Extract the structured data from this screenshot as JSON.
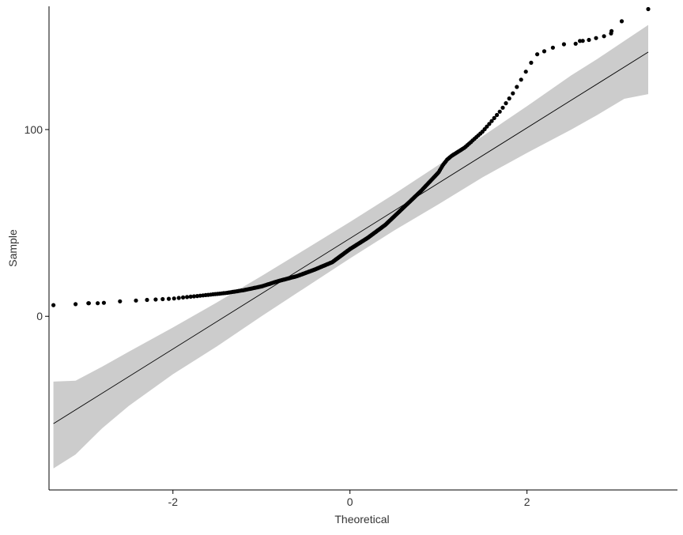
{
  "chart_data": {
    "type": "scatter",
    "subtype": "qq-plot",
    "title": "",
    "xlabel": "Theoretical",
    "ylabel": "Sample",
    "xlim": [
      -3.4,
      3.7
    ],
    "ylim": [
      -93,
      166
    ],
    "xticks": [
      {
        "value": -2,
        "label": "-2"
      },
      {
        "value": 0,
        "label": "0"
      },
      {
        "value": 2,
        "label": "2"
      }
    ],
    "yticks": [
      {
        "value": 0,
        "label": "0"
      },
      {
        "value": 100,
        "label": "100"
      }
    ],
    "grid": false,
    "legend": "none",
    "colors": {
      "points": "#000000",
      "reference_line": "#000000",
      "confidence_band": "#cccccc",
      "axis": "#000000",
      "text": "#333333"
    },
    "reference_line": {
      "x": [
        -3.35,
        3.37
      ],
      "y": [
        -57.5,
        141.5
      ]
    },
    "confidence_band": {
      "x": [
        -3.35,
        -3.1,
        -2.8,
        -2.5,
        -2.0,
        -1.5,
        -1.0,
        -0.5,
        0.0,
        0.5,
        1.0,
        1.5,
        2.0,
        2.5,
        2.8,
        3.1,
        3.37
      ],
      "upper": [
        -35,
        -34.5,
        -27,
        -19,
        -6,
        7.5,
        21.5,
        36,
        50.5,
        65.5,
        81,
        96.5,
        112.5,
        129,
        138,
        147.5,
        156
      ],
      "lower": [
        -81.5,
        -74,
        -60,
        -48,
        -31,
        -16,
        0,
        15.5,
        31,
        46,
        60,
        74.5,
        87.5,
        100,
        108,
        116.5,
        119
      ]
    },
    "points_curve": {
      "x": [
        -3.35,
        -3.1,
        -2.95,
        -2.8,
        -2.6,
        -2.4,
        -2.2,
        -2.0,
        -1.8,
        -1.6,
        -1.4,
        -1.2,
        -1.0,
        -0.8,
        -0.6,
        -0.4,
        -0.2,
        0.0,
        0.2,
        0.4,
        0.6,
        0.8,
        1.0,
        1.05,
        1.1,
        1.15,
        1.3,
        1.5,
        1.7,
        1.85,
        2.0,
        2.1,
        2.2,
        2.35,
        2.5,
        2.7,
        2.85,
        2.95,
        3.07,
        3.37
      ],
      "y": [
        6,
        6.5,
        7,
        7.5,
        8,
        8.5,
        9,
        9.5,
        10.5,
        11.5,
        12.5,
        14,
        16,
        19,
        21.5,
        25,
        29,
        36,
        42,
        49,
        58,
        67,
        77,
        81,
        84,
        86,
        90.5,
        99,
        110,
        120,
        132,
        140,
        142,
        145,
        146.5,
        148.5,
        150.5,
        152.5,
        158,
        164.5
      ]
    },
    "sample_size": 320,
    "isolated_points": [
      {
        "x": -3.35,
        "y": 6
      },
      {
        "x": -3.1,
        "y": 6.5
      },
      {
        "x": -2.95,
        "y": 7
      },
      {
        "x": -2.85,
        "y": 7
      },
      {
        "x": -2.78,
        "y": 7.2
      },
      {
        "x": 2.55,
        "y": 146
      },
      {
        "x": 2.63,
        "y": 147.5
      },
      {
        "x": 2.7,
        "y": 148
      },
      {
        "x": 2.78,
        "y": 149
      },
      {
        "x": 2.87,
        "y": 150
      },
      {
        "x": 2.95,
        "y": 151.5
      },
      {
        "x": 3.07,
        "y": 158
      },
      {
        "x": 3.37,
        "y": 164.5
      }
    ]
  }
}
